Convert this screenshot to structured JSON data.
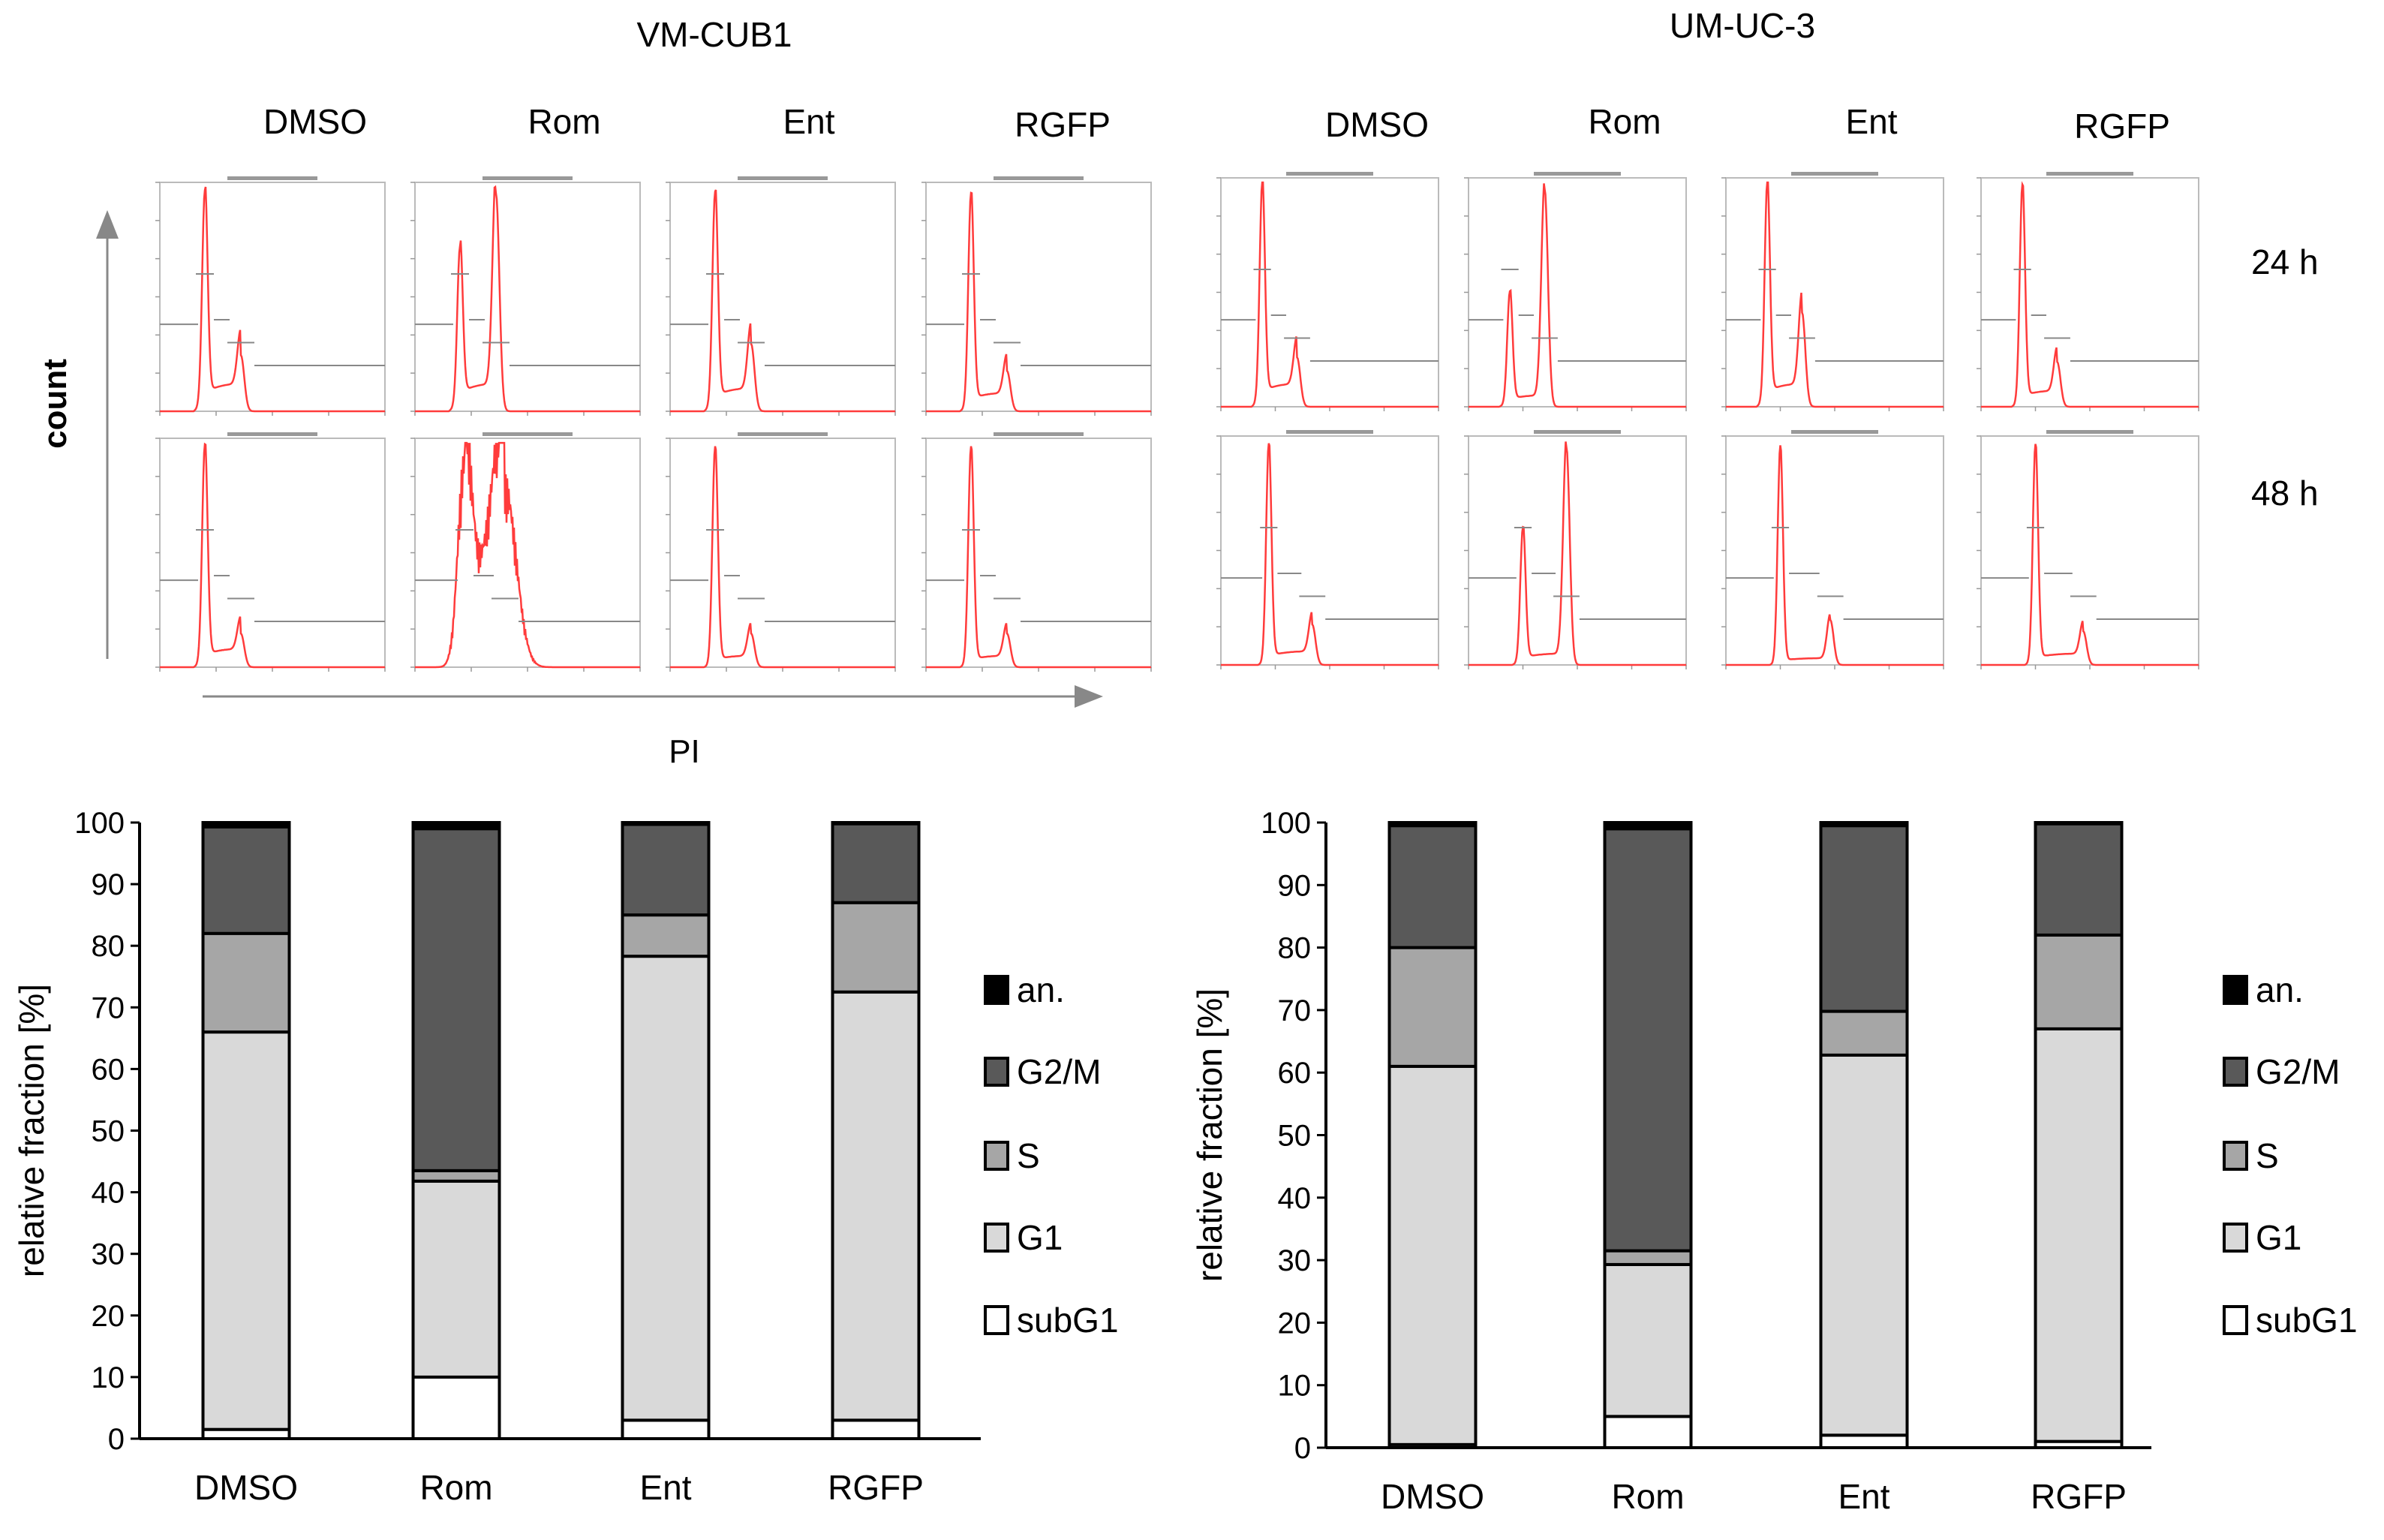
{
  "figure": {
    "cell_lines": [
      "VM-CUB1",
      "UM-UC-3"
    ],
    "conditions": [
      "DMSO",
      "Rom",
      "Ent",
      "RGFP"
    ],
    "timepoints": [
      "24 h",
      "48 h"
    ],
    "histogram_y_label": "count",
    "histogram_x_label": "PI",
    "histogram_curve_color": "#ff3b3b"
  },
  "chart_data": [
    {
      "type": "bar",
      "stacked": true,
      "cell_line": "VM-CUB1",
      "categories": [
        "DMSO",
        "Rom",
        "Ent",
        "RGFP"
      ],
      "ylabel": "relative fraction [%]",
      "xlabel": "",
      "ylim": [
        0,
        100
      ],
      "yticks": [
        0,
        10,
        20,
        30,
        40,
        50,
        60,
        70,
        80,
        90,
        100
      ],
      "legend_placement": "right",
      "series": [
        {
          "name": "subG1",
          "color": "#ffffff",
          "values": [
            1.5,
            10,
            3,
            3
          ]
        },
        {
          "name": "G1",
          "color": "#d9d9d9",
          "values": [
            64.5,
            31.8,
            75.3,
            69.5
          ]
        },
        {
          "name": "S",
          "color": "#a6a6a6",
          "values": [
            16,
            1.7,
            6.7,
            14.5
          ]
        },
        {
          "name": "G2/M",
          "color": "#595959",
          "values": [
            17.3,
            55.5,
            14.7,
            12.8
          ]
        },
        {
          "name": "an.",
          "color": "#000000",
          "values": [
            0.7,
            1,
            0.3,
            0.2
          ]
        }
      ]
    },
    {
      "type": "bar",
      "stacked": true,
      "cell_line": "UM-UC-3",
      "categories": [
        "DMSO",
        "Rom",
        "Ent",
        "RGFP"
      ],
      "ylabel": "relative fraction [%]",
      "xlabel": "",
      "ylim": [
        0,
        100
      ],
      "yticks": [
        0,
        10,
        20,
        30,
        40,
        50,
        60,
        70,
        80,
        90,
        100
      ],
      "legend_placement": "right",
      "series": [
        {
          "name": "subG1",
          "color": "#ffffff",
          "values": [
            0.5,
            5,
            2,
            1
          ]
        },
        {
          "name": "G1",
          "color": "#d9d9d9",
          "values": [
            60.5,
            24.3,
            60.8,
            66
          ]
        },
        {
          "name": "S",
          "color": "#a6a6a6",
          "values": [
            19,
            2.2,
            7,
            15
          ]
        },
        {
          "name": "G2/M",
          "color": "#595959",
          "values": [
            19.5,
            67.5,
            29.7,
            17.8
          ]
        },
        {
          "name": "an.",
          "color": "#000000",
          "values": [
            0.5,
            1,
            0.5,
            0.2
          ]
        }
      ]
    }
  ]
}
